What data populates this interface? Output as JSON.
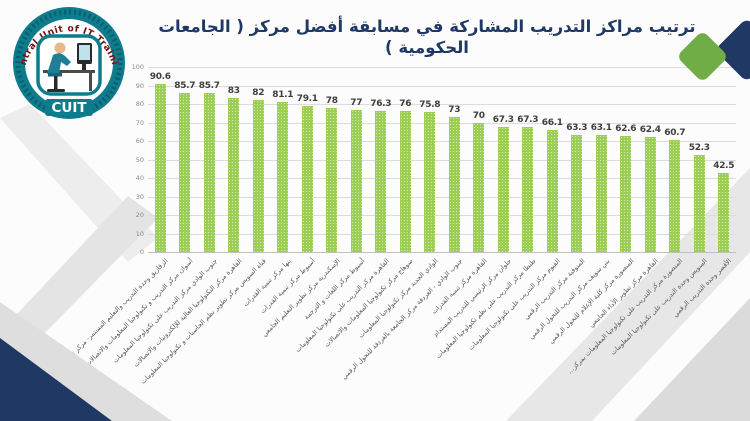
{
  "title": {
    "text": "ترتيب مراكز التدريب المشاركة في مسابقة أفضل مركز ( الجامعات الحكومية )"
  },
  "logo": {
    "arc_text": "Central Unit of IT Training",
    "acronym": "CUIT"
  },
  "chart_data": {
    "type": "bar",
    "title": "ترتيب مراكز التدريب المشاركة في مسابقة أفضل مركز ( الجامعات الحكومية )",
    "categories": [
      "الزقازيق وحدة التدريب والتعليم المستمر- مركز تنمية القدرات",
      "أسوان مركز التدريب و تكنولوجيا المعلومات والاتصالات",
      "جنوب الوادي مركز التدريب على تكنولوجيا المعلومات",
      "القاهرة مركز التكنولوجيا العالية للإلكترونيات والاتصالات",
      "قناة السويس مركز تطوير نظم الحاسبات و تكنولوجيا المعلومات",
      "بنها مركز تنمية القدرات",
      "أسيوط مركز تنمية القدرات",
      "الإسكندرية مركز تطوير التعليم الجامعي",
      "أسيوط مركز اللغات و الترجمة",
      "القاهرة مركز التدريب على تكنولوجيا المعلومات",
      "سوهاج مركز تكنولوجيا المعلومات والاتصالات",
      "الوادي الجديد مركز تكنولوجيا المعلومات",
      "جنوب الوادي - الغردقة مركز الجامعة بالغردقة للتحول الرقمي",
      "القاهرة مركز تنمية القدرات",
      "حلوان مركز الرئيسي للتدريب المستدام",
      "طنطا مركز التدريب على نظم تكنولوجيا المعلومات",
      "الفيوم مركز التدريب على تكنولوجيا المعلومات",
      "المنوفية مركز التدريب الرقمي",
      "بني سويف مركز التدريب للتحول الرقمي",
      "المنصورة مركز كلية الإعلام للتحول الرقمي",
      "القاهرة مركز تطوير الأداء الجامعي",
      "المنصورة مركز التدريب على تكنولوجيا المعلومات بمركز…",
      "السويس وحدة التدريب على تكنولوجيا المعلومات",
      "الأقصر وحدة التدريب الرقمي"
    ],
    "values": [
      90.6,
      85.7,
      85.7,
      83,
      82,
      81.1,
      79.1,
      78,
      77,
      76.3,
      76,
      75.8,
      73,
      70,
      67.3,
      67.3,
      66.1,
      63.3,
      63.1,
      62.6,
      62.4,
      60.7,
      52.3,
      42.5
    ],
    "xlabel": "",
    "ylabel": "",
    "ylim": [
      0,
      100
    ],
    "yticks": [
      0,
      10,
      20,
      30,
      40,
      50,
      60,
      70,
      80,
      90,
      100
    ],
    "grid": true,
    "legend": false,
    "bar_color": "#9CCE54",
    "value_label_color": "#3F3F3F"
  },
  "colors": {
    "accent_navy": "#1F3864",
    "accent_green": "#70AD47",
    "decor_gray": "#E7E7E7",
    "logo_teal": "#0E7C8C",
    "logo_text_red": "#7B1113"
  }
}
